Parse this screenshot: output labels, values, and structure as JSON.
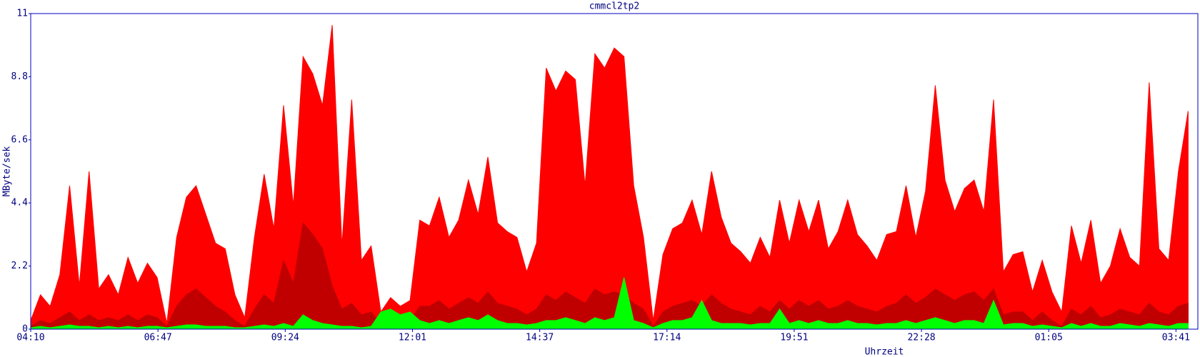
{
  "chart_data": {
    "type": "area",
    "title": "cmmcl2tp2",
    "x_label": "Uhrzeit",
    "y_label": "MByte/sek",
    "xlim": [
      0,
      1440
    ],
    "xticks": [
      {
        "value": 0,
        "label": "04:10"
      },
      {
        "value": 157,
        "label": "06:47"
      },
      {
        "value": 314,
        "label": "09:24"
      },
      {
        "value": 471,
        "label": "12:01"
      },
      {
        "value": 628,
        "label": "14:37"
      },
      {
        "value": 785,
        "label": "17:14"
      },
      {
        "value": 942,
        "label": "19:51"
      },
      {
        "value": 1099,
        "label": "22:28"
      },
      {
        "value": 1256,
        "label": "01:05"
      },
      {
        "value": 1413,
        "label": "03:41"
      }
    ],
    "ylim": [
      0,
      11
    ],
    "yticks": [
      0,
      2.2,
      4.4,
      6.6,
      8.8,
      11
    ],
    "grid": false,
    "x": [
      0,
      12,
      24,
      36,
      48,
      60,
      72,
      84,
      96,
      108,
      120,
      132,
      144,
      156,
      168,
      180,
      192,
      204,
      216,
      228,
      240,
      252,
      264,
      276,
      288,
      300,
      312,
      324,
      336,
      348,
      360,
      372,
      384,
      396,
      408,
      420,
      432,
      444,
      456,
      468,
      480,
      492,
      504,
      516,
      528,
      540,
      552,
      564,
      576,
      588,
      600,
      612,
      624,
      636,
      648,
      660,
      672,
      684,
      696,
      708,
      720,
      732,
      744,
      756,
      768,
      780,
      792,
      804,
      816,
      828,
      840,
      852,
      864,
      876,
      888,
      900,
      912,
      924,
      936,
      948,
      960,
      972,
      984,
      996,
      1008,
      1020,
      1032,
      1044,
      1056,
      1068,
      1080,
      1092,
      1104,
      1116,
      1128,
      1140,
      1152,
      1164,
      1176,
      1188,
      1200,
      1212,
      1224,
      1236,
      1248,
      1260,
      1272,
      1284,
      1296,
      1308,
      1320,
      1332,
      1344,
      1356,
      1368,
      1380,
      1392,
      1404,
      1416,
      1428
    ],
    "series": [
      {
        "color": "#ff0000",
        "values": [
          0.3,
          1.2,
          0.8,
          1.9,
          5.0,
          1.5,
          5.5,
          1.4,
          1.9,
          1.2,
          2.5,
          1.6,
          2.3,
          1.8,
          0.2,
          3.2,
          4.6,
          5.0,
          4.0,
          3.0,
          2.8,
          1.2,
          0.4,
          3.2,
          5.4,
          3.5,
          7.8,
          4.3,
          9.5,
          8.9,
          7.8,
          10.6,
          2.9,
          8.0,
          2.4,
          2.9,
          0.6,
          1.1,
          0.8,
          1.0,
          3.8,
          3.6,
          4.6,
          3.2,
          3.8,
          5.2,
          4.0,
          6.0,
          3.7,
          3.4,
          3.2,
          2.0,
          3.0,
          9.1,
          8.3,
          9.0,
          8.7,
          5.0,
          9.6,
          9.1,
          9.8,
          9.5,
          5.0,
          3.2,
          0.3,
          2.6,
          3.5,
          3.7,
          4.5,
          3.3,
          5.5,
          3.9,
          3.0,
          2.7,
          2.3,
          3.2,
          2.5,
          4.5,
          3.0,
          4.5,
          3.4,
          4.5,
          2.8,
          3.4,
          4.5,
          3.3,
          2.9,
          2.4,
          3.3,
          3.4,
          5.0,
          3.2,
          4.8,
          8.5,
          5.2,
          4.1,
          4.9,
          5.2,
          4.1,
          8.0,
          2.0,
          2.6,
          2.7,
          1.3,
          2.4,
          1.3,
          0.6,
          3.6,
          2.3,
          3.8,
          1.6,
          2.2,
          3.5,
          2.5,
          2.2,
          8.6,
          2.8,
          2.4,
          5.5,
          7.6
        ]
      },
      {
        "color": "#c00000",
        "values": [
          0.1,
          0.3,
          0.2,
          0.4,
          0.6,
          0.3,
          0.5,
          0.3,
          0.4,
          0.3,
          0.5,
          0.3,
          0.5,
          0.4,
          0.1,
          0.8,
          1.2,
          1.4,
          1.1,
          0.8,
          0.6,
          0.3,
          0.1,
          0.7,
          1.2,
          0.9,
          2.4,
          1.6,
          3.7,
          3.3,
          2.8,
          1.5,
          0.7,
          0.9,
          0.5,
          0.6,
          0.2,
          0.3,
          0.2,
          0.3,
          0.8,
          0.8,
          1.0,
          0.7,
          0.9,
          1.1,
          0.9,
          1.3,
          0.9,
          0.8,
          0.7,
          0.5,
          0.7,
          1.2,
          1.0,
          1.3,
          1.1,
          0.9,
          1.4,
          1.2,
          1.3,
          1.2,
          0.9,
          0.7,
          0.1,
          0.6,
          0.8,
          0.9,
          1.0,
          0.8,
          1.2,
          0.9,
          0.7,
          0.6,
          0.5,
          0.8,
          0.6,
          1.0,
          0.7,
          1.0,
          0.8,
          1.0,
          0.7,
          0.8,
          1.0,
          0.8,
          0.7,
          0.6,
          0.8,
          0.9,
          1.2,
          0.9,
          1.1,
          1.4,
          1.2,
          1.0,
          1.2,
          1.3,
          1.0,
          1.4,
          0.5,
          0.6,
          0.6,
          0.3,
          0.6,
          0.3,
          0.1,
          0.7,
          0.5,
          0.8,
          0.4,
          0.5,
          0.7,
          0.6,
          0.5,
          0.9,
          0.6,
          0.5,
          0.8,
          0.9
        ]
      },
      {
        "color": "#00ff00",
        "values": [
          0.05,
          0.1,
          0.05,
          0.1,
          0.15,
          0.1,
          0.1,
          0.05,
          0.1,
          0.05,
          0.1,
          0.05,
          0.1,
          0.1,
          0.05,
          0.1,
          0.15,
          0.15,
          0.1,
          0.1,
          0.1,
          0.05,
          0.05,
          0.1,
          0.15,
          0.1,
          0.2,
          0.1,
          0.5,
          0.3,
          0.2,
          0.15,
          0.1,
          0.1,
          0.05,
          0.1,
          0.6,
          0.7,
          0.5,
          0.6,
          0.3,
          0.2,
          0.3,
          0.2,
          0.3,
          0.4,
          0.3,
          0.5,
          0.3,
          0.2,
          0.2,
          0.15,
          0.2,
          0.3,
          0.3,
          0.4,
          0.3,
          0.2,
          0.4,
          0.3,
          0.4,
          1.8,
          0.3,
          0.2,
          0.05,
          0.2,
          0.3,
          0.3,
          0.4,
          1.0,
          0.3,
          0.2,
          0.2,
          0.2,
          0.15,
          0.2,
          0.2,
          0.7,
          0.2,
          0.3,
          0.2,
          0.3,
          0.2,
          0.2,
          0.3,
          0.2,
          0.2,
          0.15,
          0.2,
          0.2,
          0.3,
          0.2,
          0.3,
          0.4,
          0.3,
          0.2,
          0.3,
          0.3,
          0.2,
          1.0,
          0.15,
          0.2,
          0.2,
          0.1,
          0.15,
          0.1,
          0.05,
          0.2,
          0.1,
          0.2,
          0.1,
          0.1,
          0.2,
          0.15,
          0.1,
          0.2,
          0.15,
          0.1,
          0.2,
          0.2
        ]
      }
    ]
  }
}
